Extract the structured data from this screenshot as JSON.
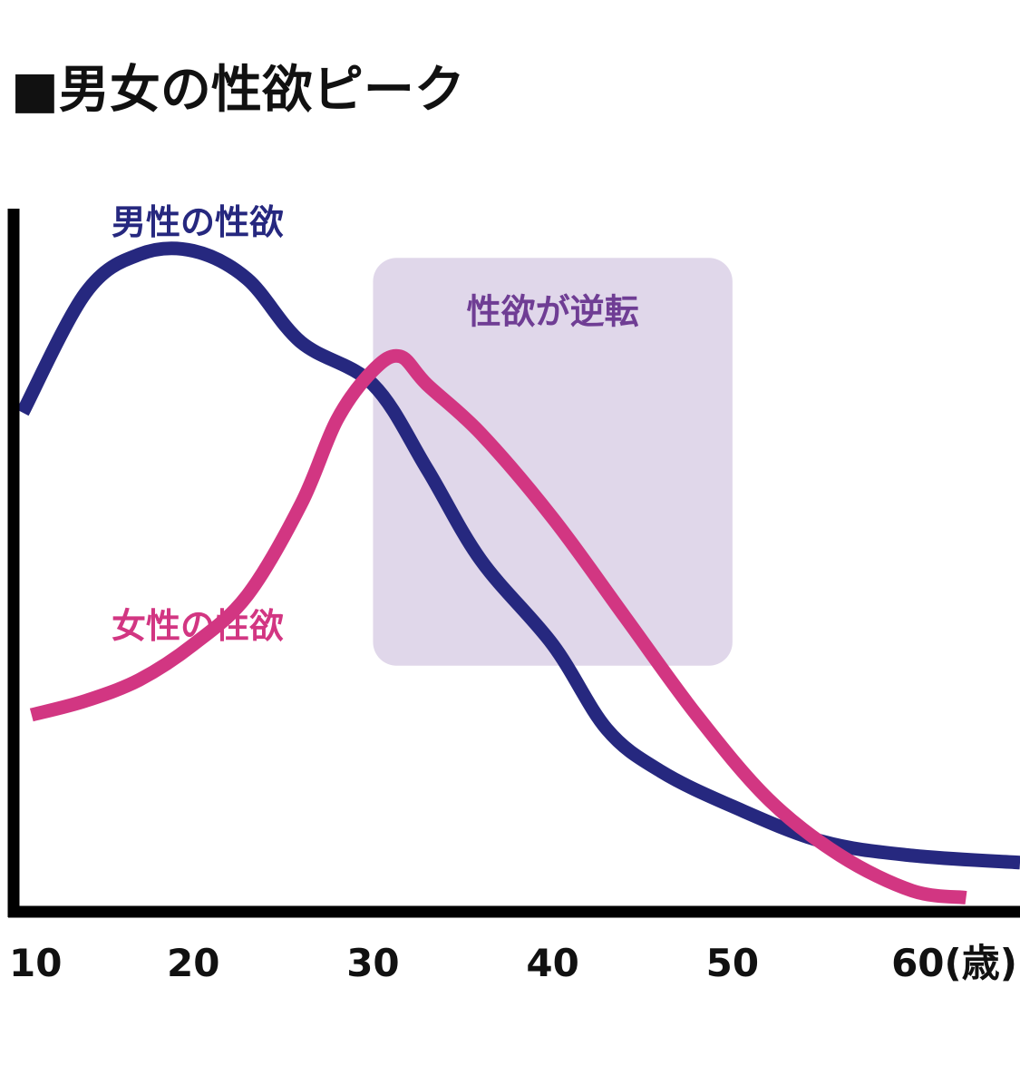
{
  "chart_data": {
    "type": "line",
    "title": "■男女の性欲ピーク",
    "xlabel": "",
    "ylabel": "",
    "x_unit": "(歳)",
    "xlim": [
      10,
      66
    ],
    "ylim": [
      0,
      100
    ],
    "xticks": [
      10,
      20,
      30,
      40,
      50,
      60
    ],
    "xtick_labels": [
      "10",
      "20",
      "30",
      "40",
      "50",
      "60(歳)"
    ],
    "axes_color": "#000000",
    "grid": false,
    "series": [
      {
        "name": "男性の性欲",
        "color": "#26287f",
        "x": [
          10.5,
          14,
          17,
          20,
          23,
          26,
          30,
          33,
          36,
          40,
          43,
          46,
          50,
          55,
          60,
          66
        ],
        "y": [
          71,
          88,
          93.5,
          94,
          90,
          81,
          75,
          63,
          50,
          38,
          26,
          20,
          15,
          10,
          8,
          7
        ]
      },
      {
        "name": "女性の性欲",
        "color": "#d23682",
        "x": [
          11,
          14,
          17,
          20,
          23,
          26,
          28,
          30,
          31.5,
          33,
          36,
          40,
          44,
          48,
          52,
          56,
          60,
          63
        ],
        "y": [
          28,
          30,
          33,
          38,
          45,
          58,
          70,
          77,
          79,
          75,
          68,
          56,
          42,
          28,
          16,
          8,
          3,
          2
        ]
      }
    ],
    "annotations": [
      {
        "text": "性欲が逆転",
        "type": "highlight_region",
        "x_range": [
          30,
          50
        ],
        "y_range": [
          35,
          93
        ],
        "fill": "#e0d7ea",
        "text_color": "#6f3d94"
      }
    ]
  }
}
